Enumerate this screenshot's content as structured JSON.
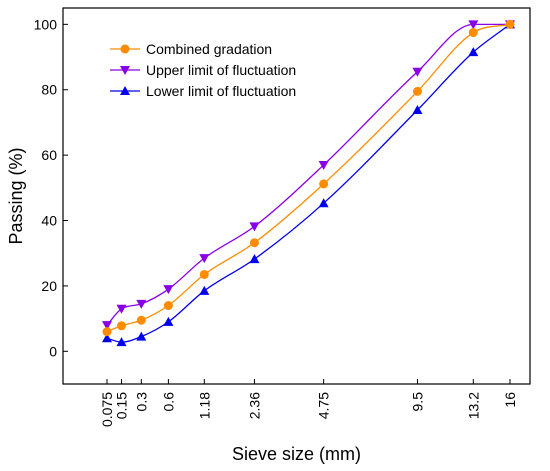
{
  "chart_data": {
    "type": "line",
    "title": "",
    "xlabel": "Sieve size (mm)",
    "ylabel": "Passing (%)",
    "x_scale": "power 0.45",
    "x_tick_labels": [
      "0.075",
      "0.15",
      "0.3",
      "0.6",
      "1.18",
      "2.36",
      "4.75",
      "9.5",
      "13.2",
      "16"
    ],
    "x": [
      0.075,
      0.15,
      0.3,
      0.6,
      1.18,
      2.36,
      4.75,
      9.5,
      13.2,
      16
    ],
    "ylim": [
      -10,
      105
    ],
    "y_ticks": [
      0,
      20,
      40,
      60,
      80,
      100
    ],
    "grid": false,
    "legend_position": "top-left",
    "series": [
      {
        "name": "Combined gradation",
        "color": "#ff8c00",
        "marker": "circle",
        "values": [
          6,
          7.8,
          9.5,
          14,
          23.5,
          33.2,
          51.2,
          79.5,
          97.5,
          100
        ]
      },
      {
        "name": "Upper limit of fluctuation",
        "color": "#8a00e6",
        "marker": "triangle-down",
        "values": [
          8,
          13,
          14.5,
          19,
          28.5,
          38.2,
          57,
          85.5,
          100,
          100
        ]
      },
      {
        "name": "Lower limit of fluctuation",
        "color": "#0000ee",
        "marker": "triangle-up",
        "values": [
          4,
          2.8,
          4.5,
          9,
          18.5,
          28.2,
          45.3,
          73.8,
          91.5,
          100
        ]
      }
    ]
  }
}
